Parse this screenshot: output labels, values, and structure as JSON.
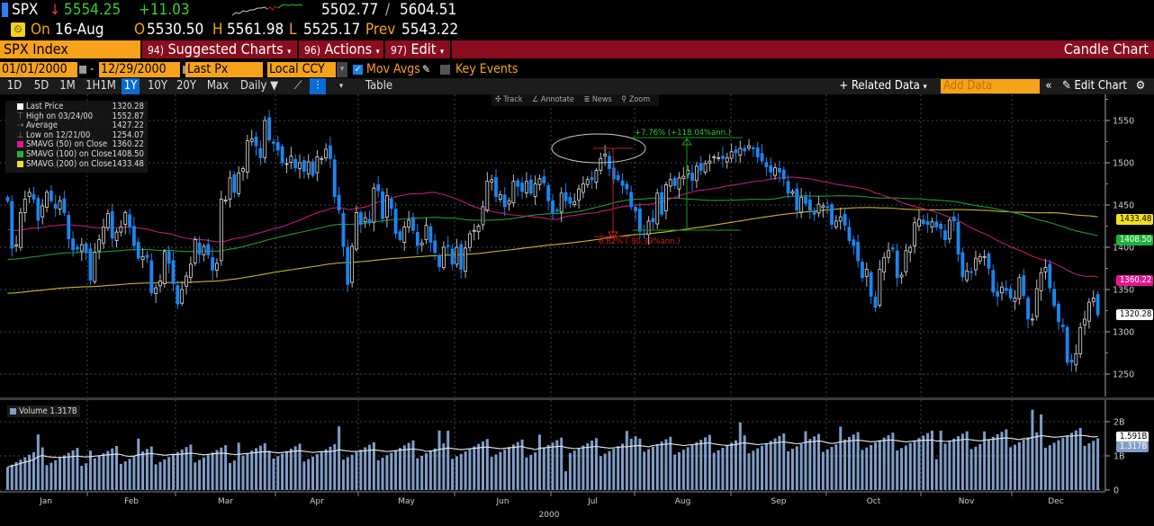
{
  "header": {
    "ticker": "SPX",
    "direction_icon": "down-arrow",
    "last_price": "5554.25",
    "change": "+11.03",
    "range_low": "5502.77",
    "range_sep": "/",
    "range_high": "5604.51",
    "clock_icon": "gauge-icon",
    "on_label": "On",
    "date": "16-Aug",
    "open_label": "O",
    "open": "5530.50",
    "high_label": "H",
    "high": "5561.98",
    "low_label": "L",
    "low": "5525.17",
    "prev_label": "Prev",
    "prev": "5543.22"
  },
  "menubar": {
    "security": "SPX Index",
    "items": [
      {
        "num": "94)",
        "label": "Suggested Charts"
      },
      {
        "num": "96)",
        "label": "Actions"
      },
      {
        "num": "97)",
        "label": "Edit"
      }
    ],
    "title": "Candle Chart"
  },
  "settings": {
    "start_date": "01/01/2000",
    "dash": "-",
    "end_date": "12/29/2000",
    "field": "Last Px",
    "currency": "Local CCY",
    "mov_avgs_label": "Mov Avgs",
    "mov_avgs_checked": true,
    "key_events_label": "Key Events",
    "key_events_checked": false
  },
  "rangebar": {
    "ranges": [
      "1D",
      "5D",
      "1M",
      "1H1M",
      "1Y",
      "10Y",
      "20Y",
      "Max"
    ],
    "selected_range": "1Y",
    "frequency": "Daily",
    "table_label": "Table",
    "related_data_label": "+ Related Data",
    "add_data_placeholder": "Add Data",
    "edit_chart_label": "Edit Chart"
  },
  "chart_tools": [
    "Track",
    "Annotate",
    "News",
    "Zoom"
  ],
  "legend": [
    {
      "label": "Last Price",
      "value": "1320.28",
      "color": "#ffffff",
      "kind": "box"
    },
    {
      "label": "High on 03/24/00",
      "value": "1552.87",
      "kind": "high"
    },
    {
      "label": "Average",
      "value": "1427.22",
      "kind": "avg"
    },
    {
      "label": "Low on 12/21/00",
      "value": "1254.07",
      "kind": "low"
    },
    {
      "label": "SMAVG (50)  on Close",
      "value": "1360.22",
      "color": "#e6168f",
      "kind": "box"
    },
    {
      "label": "SMAVG (100)  on Close",
      "value": "1408.50",
      "color": "#1db33a",
      "kind": "box"
    },
    {
      "label": "SMAVG (200)  on Close",
      "value": "1433.48",
      "color": "#f3e21a",
      "kind": "box"
    }
  ],
  "annotations": {
    "up_move": "+7.76% (+118.04%ann.)",
    "down_move": "-6.82% (-90.39%ann.)"
  },
  "price_tags": {
    "sma200": "1433.48",
    "sma100": "1408.50",
    "sma50": "1360.22",
    "last": "1320.28"
  },
  "volume": {
    "legend_label": "Volume 1.317B",
    "avg_tag": "1.591B",
    "last_tag": "1.317B"
  },
  "colors": {
    "up_candle": "#ffffff",
    "down_candle": "#1a86f0",
    "sma50": "#c2187a",
    "sma100": "#1f9a2e",
    "sma200": "#c9b520",
    "volume_bar": "#7f9dc8",
    "menubar": "#8b0d1f",
    "accent_orange": "#f7a21b"
  },
  "chart_data": {
    "type": "candlestick",
    "title": "SPX Index Candle Chart",
    "xlabel": "2000",
    "ylabel": "",
    "x_ticks": [
      "Jan",
      "Feb",
      "Mar",
      "Apr",
      "May",
      "Jun",
      "Jul",
      "Aug",
      "Sep",
      "Oct",
      "Nov",
      "Dec"
    ],
    "year_label": "2000",
    "y_ticks": [
      1250,
      1300,
      1350,
      1400,
      1450,
      1500,
      1550
    ],
    "ylim": [
      1235,
      1565
    ],
    "grid": true,
    "legend_position": "top-left",
    "monthly_closes_approx": {
      "Jan": 1394,
      "Feb": 1366,
      "Mar": 1498,
      "Apr": 1452,
      "May": 1420,
      "Jun": 1454,
      "Jul": 1430,
      "Aug": 1517,
      "Sep": 1436,
      "Oct": 1429,
      "Nov": 1315,
      "Dec": 1320
    },
    "daily_closes": [
      1455,
      1399,
      1403,
      1441,
      1457,
      1465,
      1457,
      1432,
      1449,
      1465,
      1455,
      1446,
      1455,
      1441,
      1410,
      1397,
      1398,
      1403,
      1394,
      1361,
      1394,
      1409,
      1424,
      1440,
      1411,
      1418,
      1424,
      1441,
      1424,
      1402,
      1387,
      1389,
      1388,
      1346,
      1352,
      1360,
      1395,
      1381,
      1357,
      1333,
      1350,
      1366,
      1380,
      1409,
      1392,
      1401,
      1391,
      1373,
      1381,
      1457,
      1456,
      1482,
      1465,
      1488,
      1493,
      1526,
      1528,
      1520,
      1506,
      1550,
      1527,
      1523,
      1515,
      1500,
      1499,
      1508,
      1494,
      1500,
      1490,
      1501,
      1485,
      1507,
      1505,
      1516,
      1505,
      1460,
      1444,
      1401,
      1356,
      1401,
      1441,
      1427,
      1435,
      1429,
      1470,
      1467,
      1434,
      1461,
      1446,
      1416,
      1409,
      1424,
      1432,
      1420,
      1402,
      1405,
      1426,
      1406,
      1394,
      1377,
      1400,
      1401,
      1380,
      1400,
      1374,
      1399,
      1416,
      1420,
      1425,
      1448,
      1478,
      1480,
      1460,
      1462,
      1448,
      1455,
      1478,
      1472,
      1466,
      1478,
      1464,
      1475,
      1481,
      1476,
      1455,
      1441,
      1444,
      1464,
      1455,
      1452,
      1454,
      1469,
      1475,
      1480,
      1480,
      1491,
      1505,
      1510,
      1493,
      1481,
      1480,
      1473,
      1469,
      1448,
      1443,
      1419,
      1415,
      1431,
      1430,
      1464,
      1439,
      1474,
      1480,
      1473,
      1482,
      1484,
      1491,
      1479,
      1496,
      1491,
      1499,
      1502,
      1507,
      1506,
      1505,
      1506,
      1513,
      1512,
      1517,
      1514,
      1520,
      1517,
      1507,
      1502,
      1495,
      1489,
      1494,
      1489,
      1481,
      1464,
      1466,
      1444,
      1459,
      1452,
      1444,
      1439,
      1451,
      1449,
      1448,
      1427,
      1431,
      1436,
      1426,
      1408,
      1402,
      1384,
      1364,
      1374,
      1342,
      1329,
      1374,
      1388,
      1396,
      1398,
      1364,
      1367,
      1396,
      1400,
      1429,
      1433,
      1428,
      1427,
      1430,
      1424,
      1422,
      1409,
      1432,
      1431,
      1392,
      1365,
      1372,
      1371,
      1387,
      1389,
      1389,
      1375,
      1347,
      1342,
      1353,
      1349,
      1340,
      1340,
      1364,
      1343,
      1315,
      1315,
      1351,
      1370,
      1376,
      1352,
      1331,
      1312,
      1306,
      1264,
      1264,
      1274,
      1305,
      1315,
      1335,
      1340,
      1320
    ],
    "volume_ylim_billions": [
      0,
      2.5
    ],
    "volume_y_ticks": [
      "0",
      "1B",
      "2B"
    ],
    "volume_avg_billions": 1.591,
    "volume_last_billions": 1.317
  }
}
